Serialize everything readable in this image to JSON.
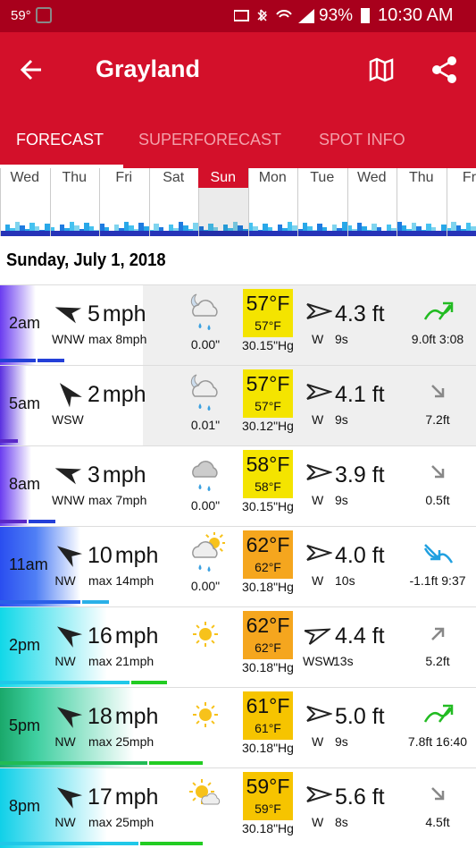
{
  "status_bar": {
    "temp": "59°",
    "battery": "93%",
    "time": "10:30 AM"
  },
  "app_bar": {
    "title": "Grayland"
  },
  "tabs": [
    "FORECAST",
    "SUPERFORECAST",
    "SPOT INFO"
  ],
  "days": [
    "Wed",
    "Thu",
    "Fri",
    "Sat",
    "Sun",
    "Mon",
    "Tue",
    "Wed",
    "Thu",
    "Fri"
  ],
  "date": "Sunday, July 1, 2018",
  "rows": [
    {
      "time": "2am",
      "speed": "5",
      "unit": "mph",
      "dir": "WNW",
      "max": "max 8mph",
      "rain": "0.00\"",
      "temp": "57°F",
      "feel": "57°F",
      "pressure": "30.15\"Hg",
      "swell": "4.3 ft",
      "swell_dir": "W",
      "period": "9s",
      "tide": "9.0ft 3:08"
    },
    {
      "time": "5am",
      "speed": "2",
      "unit": "mph",
      "dir": "WSW",
      "max": null,
      "rain": "0.01\"",
      "temp": "57°F",
      "feel": "57°F",
      "pressure": "30.12\"Hg",
      "swell": "4.1 ft",
      "swell_dir": "W",
      "period": "9s",
      "tide": "7.2ft"
    },
    {
      "time": "8am",
      "speed": "3",
      "unit": "mph",
      "dir": "WNW",
      "max": "max 7mph",
      "rain": "0.00\"",
      "temp": "58°F",
      "feel": "58°F",
      "pressure": "30.15\"Hg",
      "swell": "3.9 ft",
      "swell_dir": "W",
      "period": "9s",
      "tide": "0.5ft"
    },
    {
      "time": "11am",
      "speed": "10",
      "unit": "mph",
      "dir": "NW",
      "max": "max 14mph",
      "rain": "0.00\"",
      "temp": "62°F",
      "feel": "62°F",
      "pressure": "30.18\"Hg",
      "swell": "4.0 ft",
      "swell_dir": "W",
      "period": "10s",
      "tide": "-1.1ft 9:37"
    },
    {
      "time": "2pm",
      "speed": "16",
      "unit": "mph",
      "dir": "NW",
      "max": "max 21mph",
      "rain": null,
      "temp": "62°F",
      "feel": "62°F",
      "pressure": "30.18\"Hg",
      "swell": "4.4 ft",
      "swell_dir": "WSW",
      "period": "13s",
      "tide": "5.2ft"
    },
    {
      "time": "5pm",
      "speed": "18",
      "unit": "mph",
      "dir": "NW",
      "max": "max 25mph",
      "rain": null,
      "temp": "61°F",
      "feel": "61°F",
      "pressure": "30.18\"Hg",
      "swell": "5.0 ft",
      "swell_dir": "W",
      "period": "9s",
      "tide": "7.8ft 16:40"
    },
    {
      "time": "8pm",
      "speed": "17",
      "unit": "mph",
      "dir": "NW",
      "max": "max 25mph",
      "rain": null,
      "temp": "59°F",
      "feel": "59°F",
      "pressure": "30.18\"Hg",
      "swell": "5.6 ft",
      "swell_dir": "W",
      "period": "8s",
      "tide": "4.5ft"
    }
  ]
}
